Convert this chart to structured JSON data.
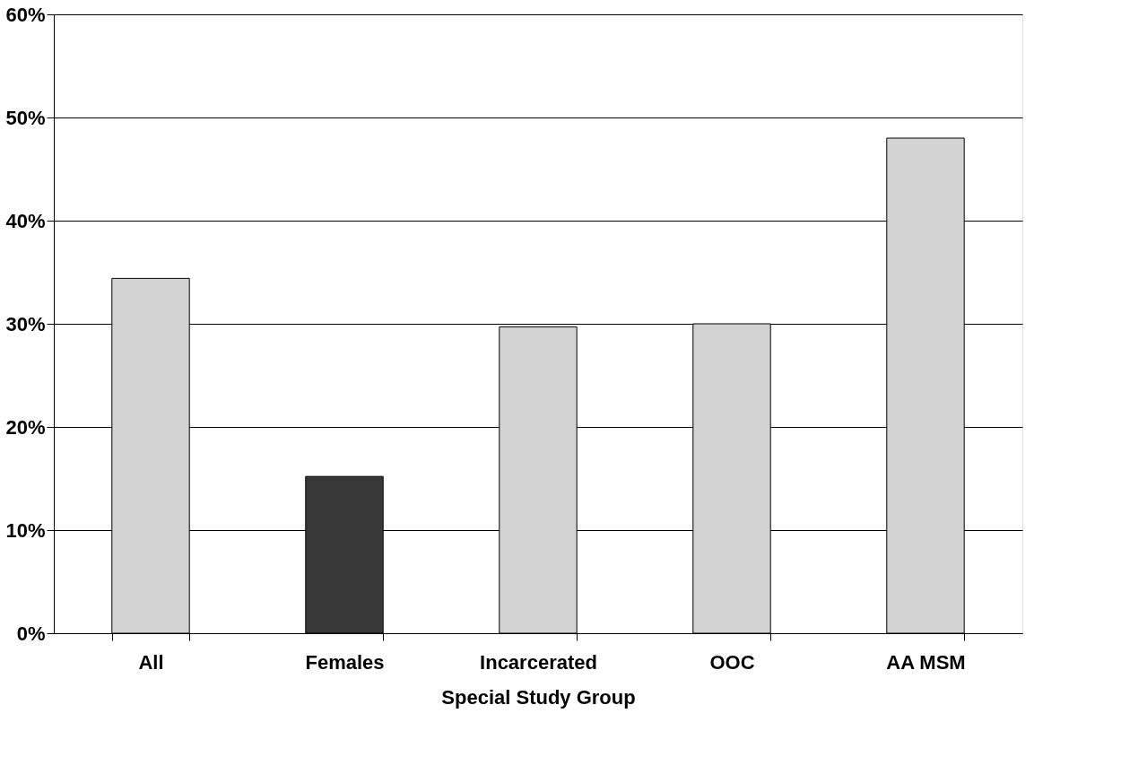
{
  "chart_data": {
    "type": "bar",
    "xlabel": "Special Study Group",
    "categories": [
      "All",
      "Females",
      "Incarcerated",
      "OOC",
      "AA MSM"
    ],
    "values": [
      34.4,
      15.2,
      29.7,
      30.0,
      48.0
    ],
    "colors": [
      "#d3d3d3",
      "#383838",
      "#d3d3d3",
      "#d3d3d3",
      "#d3d3d3"
    ],
    "ylim": [
      0,
      60
    ],
    "yticks": [
      {
        "value": 0,
        "label": "0%"
      },
      {
        "value": 10,
        "label": "10%"
      },
      {
        "value": 20,
        "label": "20%"
      },
      {
        "value": 30,
        "label": "30%"
      },
      {
        "value": 40,
        "label": "40%"
      },
      {
        "value": 50,
        "label": "50%"
      },
      {
        "value": 60,
        "label": "60%"
      }
    ],
    "grid": "y",
    "legend": false
  }
}
